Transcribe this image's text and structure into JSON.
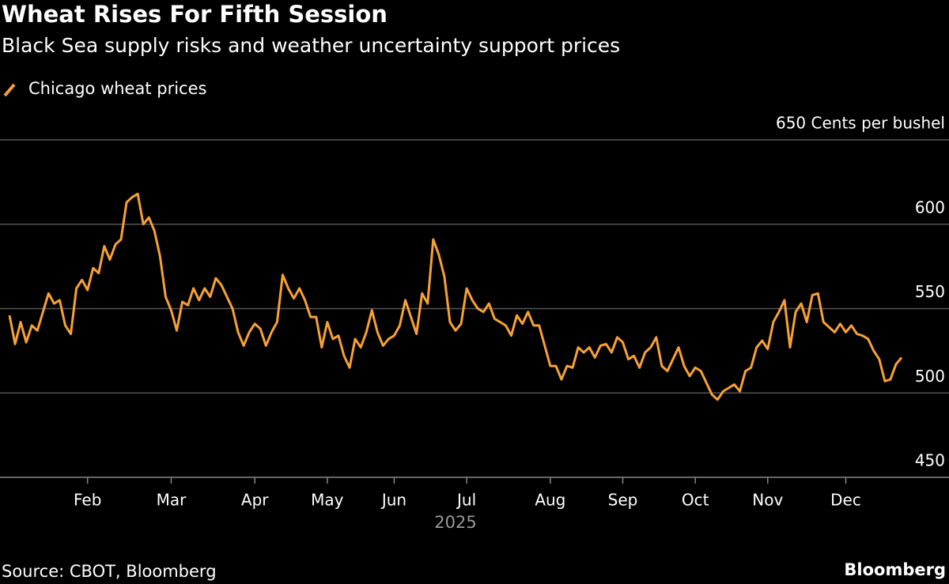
{
  "chart_data": {
    "type": "line",
    "title": "Wheat Rises For Fifth Session",
    "subtitle": "Black Sea supply risks and weather uncertainty support prices",
    "categories": [
      null,
      null,
      null,
      null,
      null,
      null,
      null,
      null,
      null,
      null,
      null,
      null,
      null,
      null,
      "Feb",
      null,
      null,
      null,
      null,
      null,
      null,
      null,
      null,
      null,
      null,
      null,
      null,
      null,
      null,
      "Mar",
      null,
      null,
      null,
      null,
      null,
      null,
      null,
      null,
      null,
      null,
      null,
      null,
      null,
      null,
      "Apr",
      null,
      null,
      null,
      null,
      null,
      null,
      null,
      null,
      null,
      null,
      null,
      null,
      "May",
      null,
      null,
      null,
      null,
      null,
      null,
      null,
      null,
      null,
      null,
      null,
      "Jun",
      null,
      null,
      null,
      null,
      null,
      null,
      null,
      null,
      null,
      null,
      null,
      null,
      "Jul",
      null,
      null,
      null,
      null,
      null,
      null,
      null,
      null,
      null,
      null,
      null,
      null,
      null,
      null,
      "Aug",
      null,
      null,
      null,
      null,
      null,
      null,
      null,
      null,
      null,
      null,
      null,
      null,
      "Sep",
      null,
      null,
      null,
      null,
      null,
      null,
      null,
      null,
      null,
      null,
      null,
      null,
      "Oct",
      null,
      null,
      null,
      null,
      null,
      null,
      null,
      null,
      null,
      null,
      null,
      null,
      "Nov",
      null,
      null,
      null,
      null,
      null,
      null,
      null,
      null,
      null,
      null,
      null,
      null,
      null,
      "Dec",
      null,
      null,
      null,
      null,
      null,
      null,
      null,
      null,
      null,
      null
    ],
    "series": [
      {
        "name": "Chicago wheat prices",
        "color": "#f7a134",
        "values": [
          546,
          529,
          542,
          530,
          540,
          537,
          548,
          559,
          553,
          555,
          540,
          535,
          562,
          567,
          561,
          574,
          571,
          587,
          579,
          588,
          591,
          613,
          616,
          618,
          600,
          604,
          596,
          581,
          557,
          549,
          537,
          554,
          552,
          562,
          555,
          562,
          557,
          568,
          564,
          557,
          550,
          536,
          528,
          536,
          541,
          538,
          528,
          536,
          542,
          570,
          562,
          556,
          562,
          555,
          545,
          545,
          527,
          542,
          532,
          534,
          522,
          515,
          532,
          527,
          536,
          549,
          536,
          528,
          532,
          534,
          540,
          555,
          545,
          535,
          559,
          553,
          591,
          582,
          569,
          542,
          537,
          541,
          562,
          555,
          550,
          548,
          553,
          544,
          542,
          540,
          534,
          546,
          541,
          548,
          540,
          540,
          528,
          516,
          516,
          508,
          516,
          515,
          527,
          524,
          527,
          521,
          528,
          529,
          524,
          533,
          530,
          520,
          522,
          515,
          524,
          527,
          533,
          516,
          513,
          520,
          527,
          516,
          510,
          515,
          513,
          506,
          499,
          496,
          501,
          503,
          505,
          501,
          513,
          515,
          527,
          531,
          526,
          542,
          548,
          555,
          527,
          548,
          553,
          542,
          558,
          559,
          542,
          539,
          536,
          541,
          536,
          540,
          535,
          534,
          532,
          525,
          520,
          507,
          508,
          517,
          521
        ]
      }
    ],
    "x_label": "2025",
    "ylim": [
      450,
      650
    ],
    "yticks": [
      450,
      500,
      550,
      600,
      {
        "value": 650,
        "label": "650 Cents per bushel"
      }
    ],
    "grid": true,
    "source": "Source: CBOT, Bloomberg",
    "brand": "Bloomberg"
  }
}
